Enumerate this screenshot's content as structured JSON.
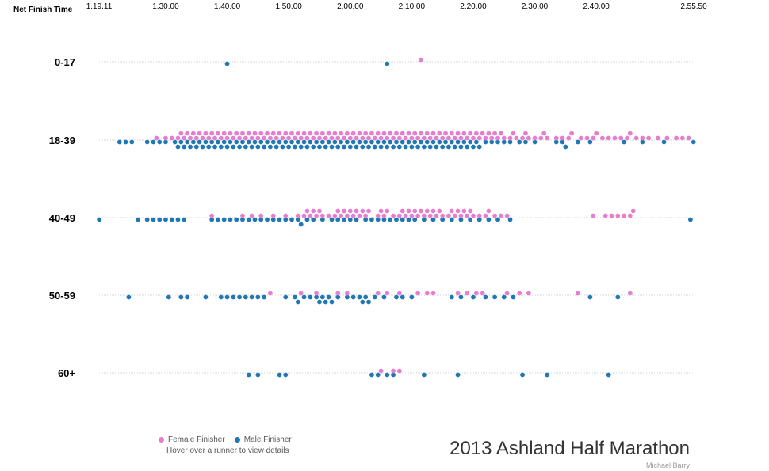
{
  "chart_data": {
    "type": "scatter",
    "title": "2013 Ashland Half Marathon",
    "credit": "Michael Barry",
    "xlabel": "Net Finish Time",
    "x_ticks": [
      "1.19.11",
      "1.30.00",
      "1.40.00",
      "1.50.00",
      "2.00.00",
      "2.10.00",
      "2.20.00",
      "2.30.00",
      "2.40.00",
      "2.55.50"
    ],
    "x_tick_minutes": [
      79.18,
      90,
      100,
      110,
      120,
      130,
      140,
      150,
      160,
      175.83
    ],
    "xlim_minutes": [
      79.18,
      175.83
    ],
    "categories": [
      "0-17",
      "18-39",
      "40-49",
      "50-59",
      "60+"
    ],
    "grid": true,
    "legend_placement": "bottom-left",
    "hint": "Hover over a runner to view details",
    "colors": {
      "female": "#e57ecf",
      "male": "#1f78b4",
      "grid": "#c8c8c8"
    },
    "series": [
      {
        "name": "Female Finisher",
        "color": "#e57ecf",
        "groups": {
          "0-17": [
            131.5
          ],
          "18-39": [
            88.5,
            90.0,
            91.0,
            92.0,
            92.5,
            93.0,
            93.5,
            94.0,
            94.5,
            95.0,
            95.5,
            96.0,
            96.5,
            97.0,
            97.5,
            98.0,
            98.5,
            99.0,
            99.5,
            100.0,
            100.5,
            101.0,
            101.5,
            102.0,
            102.5,
            103.0,
            103.5,
            104.0,
            104.5,
            105.0,
            105.5,
            106.0,
            106.5,
            107.0,
            107.5,
            108.0,
            108.5,
            109.0,
            109.5,
            110.0,
            110.5,
            111.0,
            111.5,
            112.0,
            112.5,
            113.0,
            113.5,
            114.0,
            114.5,
            115.0,
            115.5,
            116.0,
            116.5,
            117.0,
            117.5,
            118.0,
            118.5,
            119.0,
            119.5,
            120.0,
            120.5,
            121.0,
            121.5,
            122.0,
            122.5,
            123.0,
            123.5,
            124.0,
            124.5,
            125.0,
            125.5,
            126.0,
            126.5,
            127.0,
            127.5,
            128.0,
            128.5,
            129.0,
            129.5,
            130.0,
            130.5,
            131.0,
            131.5,
            132.0,
            132.5,
            133.0,
            133.5,
            134.0,
            134.5,
            135.0,
            135.5,
            136.0,
            136.5,
            137.0,
            137.5,
            138.0,
            138.5,
            139.0,
            139.5,
            140.0,
            140.5,
            141.0,
            141.5,
            142.0,
            142.5,
            143.0,
            143.5,
            144.0,
            144.5,
            145.0,
            146.0,
            146.5,
            147.0,
            148.0,
            148.5,
            149.0,
            150.0,
            151.0,
            151.5,
            152.0,
            153.5,
            154.5,
            155.5,
            156.0,
            157.5,
            158.5,
            159.5,
            160.0,
            161.0,
            162.0,
            163.0,
            164.0,
            165.0,
            165.5,
            166.5,
            167.5,
            168.5,
            170.0,
            171.5,
            173.0,
            174.0,
            175.0
          ],
          "40-49": [
            97.5,
            102.5,
            104.0,
            105.5,
            107.5,
            109.5,
            111.5,
            112.5,
            113.0,
            113.5,
            114.0,
            114.5,
            115.0,
            115.5,
            116.5,
            117.5,
            118.0,
            118.5,
            119.0,
            119.5,
            120.0,
            120.5,
            121.0,
            121.5,
            122.0,
            122.5,
            123.0,
            124.5,
            125.0,
            125.5,
            126.0,
            127.0,
            128.0,
            128.5,
            129.0,
            129.5,
            130.0,
            130.5,
            131.0,
            131.5,
            132.0,
            132.5,
            133.0,
            133.5,
            134.0,
            134.5,
            135.0,
            136.0,
            136.5,
            137.0,
            137.5,
            138.0,
            138.5,
            139.0,
            139.5,
            140.0,
            141.0,
            142.0,
            142.5,
            143.5,
            144.5,
            145.5,
            159.5,
            161.5,
            162.5,
            163.5,
            164.5,
            165.5,
            166.0
          ],
          "50-59": [
            107.0,
            112.0,
            114.5,
            118.0,
            119.5,
            124.5,
            126.0,
            128.0,
            131.0,
            132.5,
            133.5,
            137.5,
            139.0,
            140.5,
            141.5,
            145.5,
            147.5,
            149.0,
            157.0,
            165.5
          ],
          "60+": [
            125.0,
            127.0,
            128.0
          ]
        }
      },
      {
        "name": "Male Finisher",
        "color": "#1f78b4",
        "groups": {
          "0-17": [
            100.0,
            126.0
          ],
          "18-39": [
            82.5,
            83.5,
            84.5,
            87.0,
            88.0,
            89.0,
            90.0,
            91.5,
            92.0,
            92.5,
            93.0,
            93.5,
            94.0,
            94.5,
            95.0,
            95.5,
            96.0,
            96.5,
            97.0,
            97.5,
            98.0,
            98.5,
            99.0,
            99.5,
            100.0,
            100.5,
            101.0,
            101.5,
            102.0,
            102.5,
            103.0,
            103.5,
            104.0,
            104.5,
            105.0,
            105.5,
            106.0,
            106.5,
            107.0,
            107.5,
            108.0,
            108.5,
            109.0,
            109.5,
            110.0,
            110.5,
            111.0,
            111.5,
            112.0,
            112.5,
            113.0,
            113.5,
            114.0,
            114.5,
            115.0,
            115.5,
            116.0,
            116.5,
            117.0,
            117.5,
            118.0,
            118.5,
            119.0,
            119.5,
            120.0,
            120.5,
            121.0,
            121.5,
            122.0,
            122.5,
            123.0,
            123.5,
            124.0,
            124.5,
            125.0,
            125.5,
            126.0,
            126.5,
            127.0,
            127.5,
            128.0,
            128.5,
            129.0,
            129.5,
            130.0,
            130.5,
            131.0,
            131.5,
            132.0,
            132.5,
            133.0,
            133.5,
            134.0,
            134.5,
            135.0,
            135.5,
            136.0,
            136.5,
            137.0,
            137.5,
            138.0,
            138.5,
            139.0,
            139.5,
            140.0,
            140.5,
            141.0,
            142.0,
            143.0,
            144.0,
            145.0,
            146.0,
            147.5,
            148.5,
            150.0,
            153.5,
            154.5,
            155.0,
            157.0,
            159.0,
            164.5,
            167.5,
            171.0,
            175.8
          ],
          "40-49": [
            79.2,
            85.5,
            87.0,
            88.0,
            89.0,
            90.0,
            91.0,
            92.0,
            93.0,
            97.5,
            98.5,
            99.5,
            100.5,
            101.5,
            102.5,
            103.5,
            104.5,
            105.5,
            106.5,
            107.5,
            108.5,
            109.5,
            110.5,
            111.5,
            112.0,
            113.0,
            114.0,
            115.5,
            117.0,
            118.0,
            119.0,
            120.0,
            121.0,
            122.5,
            123.5,
            124.5,
            125.5,
            126.5,
            127.5,
            128.5,
            129.5,
            130.5,
            132.0,
            133.5,
            135.0,
            136.5,
            138.0,
            139.5,
            141.0,
            142.5,
            144.0,
            146.0,
            175.3
          ],
          "50-59": [
            84.0,
            90.5,
            92.5,
            93.5,
            96.5,
            99.0,
            100.0,
            101.0,
            102.0,
            103.0,
            104.0,
            105.0,
            106.0,
            109.5,
            111.0,
            111.5,
            112.5,
            113.5,
            114.5,
            115.0,
            115.5,
            116.0,
            116.5,
            117.0,
            118.0,
            119.5,
            120.5,
            121.5,
            122.0,
            122.5,
            123.0,
            124.0,
            125.5,
            127.5,
            128.5,
            130.0,
            136.5,
            138.0,
            140.0,
            142.0,
            143.5,
            145.0,
            146.5,
            159.0,
            163.5
          ],
          "60+": [
            103.5,
            105.0,
            108.5,
            109.5,
            123.5,
            124.5,
            126.0,
            127.0,
            132.0,
            137.5,
            148.0,
            152.0,
            162.0
          ]
        }
      }
    ]
  }
}
